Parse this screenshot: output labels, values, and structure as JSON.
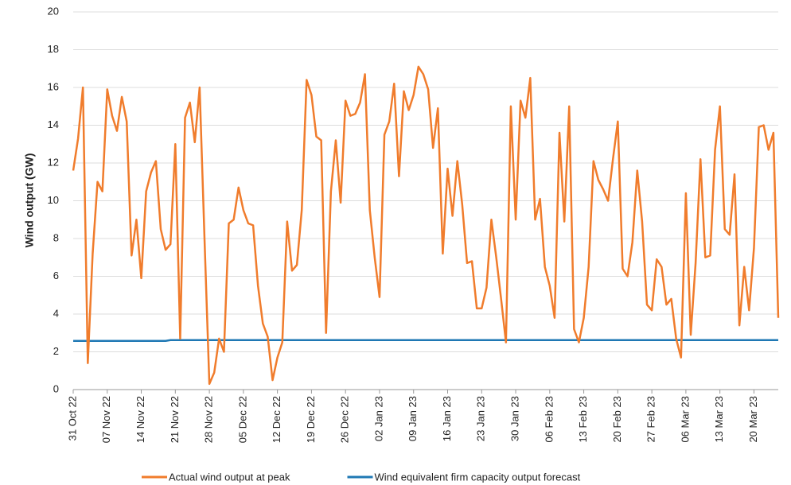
{
  "chart_data": {
    "type": "line",
    "y_label": "Wind output (GW)",
    "categories": [
      "31 Oct 22",
      null,
      null,
      null,
      null,
      null,
      null,
      "07 Nov 22",
      null,
      null,
      null,
      null,
      null,
      null,
      "14 Nov 22",
      null,
      null,
      null,
      null,
      null,
      null,
      "21 Nov 22",
      null,
      null,
      null,
      null,
      null,
      null,
      "28 Nov 22",
      null,
      null,
      null,
      null,
      null,
      null,
      "05 Dec 22",
      null,
      null,
      null,
      null,
      null,
      null,
      "12 Dec 22",
      null,
      null,
      null,
      null,
      null,
      null,
      "19 Dec 22",
      null,
      null,
      null,
      null,
      null,
      null,
      "26 Dec 22",
      null,
      null,
      null,
      null,
      null,
      null,
      "02 Jan 23",
      null,
      null,
      null,
      null,
      null,
      null,
      "09 Jan 23",
      null,
      null,
      null,
      null,
      null,
      null,
      "16 Jan 23",
      null,
      null,
      null,
      null,
      null,
      null,
      "23 Jan 23",
      null,
      null,
      null,
      null,
      null,
      null,
      "30 Jan 23",
      null,
      null,
      null,
      null,
      null,
      null,
      "06 Feb 23",
      null,
      null,
      null,
      null,
      null,
      null,
      "13 Feb 23",
      null,
      null,
      null,
      null,
      null,
      null,
      "20 Feb 23",
      null,
      null,
      null,
      null,
      null,
      null,
      "27 Feb 23",
      null,
      null,
      null,
      null,
      null,
      null,
      "06 Mar 23",
      null,
      null,
      null,
      null,
      null,
      null,
      "13 Mar 23",
      null,
      null,
      null,
      null,
      null,
      null,
      "20 Mar 23",
      null,
      null,
      null,
      null,
      null
    ],
    "series": [
      {
        "name": "Actual wind output at peak",
        "color": "#f07c2c",
        "values": [
          11.6,
          13.3,
          16,
          1.4,
          7.2,
          11,
          10.5,
          15.9,
          14.5,
          13.7,
          15.5,
          14.2,
          7.1,
          9,
          5.9,
          10.5,
          11.5,
          12.1,
          8.5,
          7.4,
          7.7,
          13,
          2.7,
          14.4,
          15.2,
          13.1,
          16,
          8,
          0.3,
          0.9,
          2.7,
          2,
          8.8,
          9,
          10.7,
          9.5,
          8.8,
          8.7,
          5.5,
          3.5,
          2.8,
          0.5,
          1.7,
          2.5,
          8.9,
          6.3,
          6.6,
          9.5,
          16.4,
          15.6,
          13.4,
          13.2,
          3,
          10.5,
          13.2,
          9.9,
          15.3,
          14.5,
          14.6,
          15.2,
          16.7,
          9.5,
          7,
          4.9,
          13.5,
          14.2,
          16.2,
          11.3,
          15.8,
          14.8,
          15.6,
          17.1,
          16.7,
          15.9,
          12.8,
          14.9,
          7.2,
          11.7,
          9.2,
          12.1,
          9.8,
          6.7,
          6.8,
          4.3,
          4.3,
          5.4,
          9,
          7,
          4.8,
          2.5,
          15,
          9,
          15.3,
          14.4,
          16.5,
          9,
          10.1,
          6.5,
          5.5,
          3.8,
          13.6,
          8.9,
          15,
          3.2,
          2.5,
          3.8,
          6.5,
          12.1,
          11.1,
          10.6,
          10,
          12.2,
          14.2,
          6.4,
          6,
          7.8,
          11.6,
          8.9,
          4.5,
          4.2,
          6.9,
          6.5,
          4.5,
          4.8,
          2.7,
          1.7,
          10.4,
          2.9,
          6.7,
          12.2,
          7,
          7.1,
          12.7,
          15,
          8.5,
          8.2,
          11.4,
          3.4,
          6.5,
          4.2,
          7.5,
          13.9,
          14,
          12.7,
          13.6,
          3.8
        ]
      },
      {
        "name": "Wind equivalent firm capacity output forecast",
        "color": "#1f78b4",
        "values": [
          2.58,
          2.58,
          2.58,
          2.58,
          2.58,
          2.58,
          2.58,
          2.58,
          2.58,
          2.58,
          2.58,
          2.58,
          2.58,
          2.58,
          2.58,
          2.58,
          2.58,
          2.58,
          2.58,
          2.58,
          2.62,
          2.62,
          2.62,
          2.62,
          2.62,
          2.62,
          2.62,
          2.62,
          2.62,
          2.62,
          2.62,
          2.62,
          2.62,
          2.62,
          2.62,
          2.62,
          2.62,
          2.62,
          2.62,
          2.62,
          2.62,
          2.62,
          2.62,
          2.62,
          2.62,
          2.62,
          2.62,
          2.62,
          2.62,
          2.62,
          2.62,
          2.62,
          2.62,
          2.62,
          2.62,
          2.62,
          2.62,
          2.62,
          2.62,
          2.62,
          2.62,
          2.62,
          2.62,
          2.62,
          2.62,
          2.62,
          2.62,
          2.62,
          2.62,
          2.62,
          2.62,
          2.62,
          2.62,
          2.62,
          2.62,
          2.62,
          2.62,
          2.62,
          2.62,
          2.62,
          2.62,
          2.62,
          2.62,
          2.62,
          2.62,
          2.62,
          2.62,
          2.62,
          2.62,
          2.62,
          2.62,
          2.62,
          2.62,
          2.62,
          2.62,
          2.62,
          2.62,
          2.62,
          2.62,
          2.62,
          2.62,
          2.62,
          2.62,
          2.62,
          2.62,
          2.62,
          2.62,
          2.62,
          2.62,
          2.62,
          2.62,
          2.62,
          2.62,
          2.62,
          2.62,
          2.62,
          2.62,
          2.62,
          2.62,
          2.62,
          2.62,
          2.62,
          2.62,
          2.62,
          2.62,
          2.62,
          2.62,
          2.62,
          2.62,
          2.62,
          2.62,
          2.62,
          2.62,
          2.62,
          2.62,
          2.62,
          2.62,
          2.62,
          2.62,
          2.62,
          2.62,
          2.62,
          2.62,
          2.62,
          2.62,
          2.62
        ]
      }
    ],
    "ylim": [
      0,
      20
    ],
    "yticks": [
      0,
      2,
      4,
      6,
      8,
      10,
      12,
      14,
      16,
      18,
      20
    ],
    "grid": true
  }
}
